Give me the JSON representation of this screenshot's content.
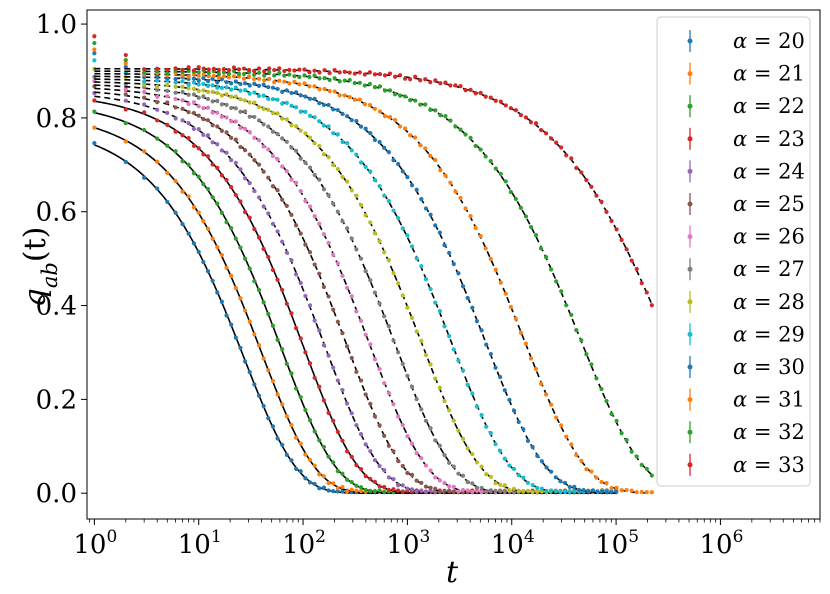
{
  "chart_data": {
    "type": "scatter",
    "xlabel": "t",
    "ylabel_main": "q",
    "ylabel_sub": "ab",
    "ylabel_arg": "(t)",
    "xscale": "log",
    "xlim": [
      0.85,
      9000000
    ],
    "ylim": [
      -0.055,
      1.03
    ],
    "x_ticks": [
      {
        "base": "10",
        "exp": "0",
        "value": 1
      },
      {
        "base": "10",
        "exp": "1",
        "value": 10
      },
      {
        "base": "10",
        "exp": "2",
        "value": 100
      },
      {
        "base": "10",
        "exp": "3",
        "value": 1000
      },
      {
        "base": "10",
        "exp": "4",
        "value": 10000
      },
      {
        "base": "10",
        "exp": "5",
        "value": 100000
      },
      {
        "base": "10",
        "exp": "6",
        "value": 1000000
      }
    ],
    "y_ticks": [
      {
        "label": "0.0",
        "value": 0.0
      },
      {
        "label": "0.2",
        "value": 0.2
      },
      {
        "label": "0.4",
        "value": 0.4
      },
      {
        "label": "0.6",
        "value": 0.6
      },
      {
        "label": "0.8",
        "value": 0.8
      },
      {
        "label": "1.0",
        "value": 1.0
      }
    ],
    "legend_position": "right",
    "colors": {
      "fit_line": "#000000"
    },
    "series": [
      {
        "legend": "α = 20",
        "greek": "α",
        "eq": " = 20",
        "color": "#1f77b4",
        "q0": 0.789,
        "qp": 0.789,
        "tau": 27,
        "beta": 0.85,
        "t_max": 100000
      },
      {
        "legend": "α = 21",
        "greek": "α",
        "eq": " = 21",
        "color": "#ff7f0e",
        "q0": 0.815,
        "qp": 0.815,
        "tau": 40,
        "beta": 0.84,
        "t_max": 100000
      },
      {
        "legend": "α = 22",
        "greek": "α",
        "eq": " = 22",
        "color": "#2ca02c",
        "q0": 0.838,
        "qp": 0.838,
        "tau": 62,
        "beta": 0.83,
        "t_max": 100000
      },
      {
        "legend": "α = 23",
        "greek": "α",
        "eq": " = 23",
        "color": "#d62728",
        "q0": 0.855,
        "qp": 0.855,
        "tau": 100,
        "beta": 0.82,
        "t_max": 100000
      },
      {
        "legend": "α = 24",
        "greek": "α",
        "eq": " = 24",
        "color": "#9467bd",
        "q0": 0.865,
        "qp": 0.86,
        "tau": 160,
        "beta": 0.81,
        "t_max": 100000
      },
      {
        "legend": "α = 25",
        "greek": "α",
        "eq": " = 25",
        "color": "#8c564b",
        "q0": 0.875,
        "qp": 0.865,
        "tau": 260,
        "beta": 0.8,
        "t_max": 100000
      },
      {
        "legend": "α = 26",
        "greek": "α",
        "eq": " = 26",
        "color": "#e377c2",
        "q0": 0.885,
        "qp": 0.87,
        "tau": 430,
        "beta": 0.79,
        "t_max": 100000
      },
      {
        "legend": "α = 27",
        "greek": "α",
        "eq": " = 27",
        "color": "#7f7f7f",
        "q0": 0.895,
        "qp": 0.875,
        "tau": 750,
        "beta": 0.78,
        "t_max": 100000
      },
      {
        "legend": "α = 28",
        "greek": "α",
        "eq": " = 28",
        "color": "#bcbd22",
        "q0": 0.91,
        "qp": 0.88,
        "tau": 1350,
        "beta": 0.77,
        "t_max": 100000
      },
      {
        "legend": "α = 29",
        "greek": "α",
        "eq": " = 29",
        "color": "#17becf",
        "q0": 0.925,
        "qp": 0.885,
        "tau": 2600,
        "beta": 0.76,
        "t_max": 100000
      },
      {
        "legend": "α = 30",
        "greek": "α",
        "eq": " = 30",
        "color": "#1f77b4",
        "q0": 0.94,
        "qp": 0.89,
        "tau": 5500,
        "beta": 0.75,
        "t_max": 100000
      },
      {
        "legend": "α = 31",
        "greek": "α",
        "eq": " = 31",
        "color": "#ff7f0e",
        "q0": 0.95,
        "qp": 0.895,
        "tau": 13000,
        "beta": 0.74,
        "t_max": 220000
      },
      {
        "legend": "α = 32",
        "greek": "α",
        "eq": " = 32",
        "color": "#2ca02c",
        "q0": 0.96,
        "qp": 0.9,
        "tau": 45000,
        "beta": 0.72,
        "t_max": 220000
      },
      {
        "legend": "α = 33",
        "greek": "α",
        "eq": " = 33",
        "color": "#d62728",
        "q0": 0.975,
        "qp": 0.905,
        "tau": 300000,
        "beta": 0.68,
        "t_max": 220000
      }
    ]
  }
}
